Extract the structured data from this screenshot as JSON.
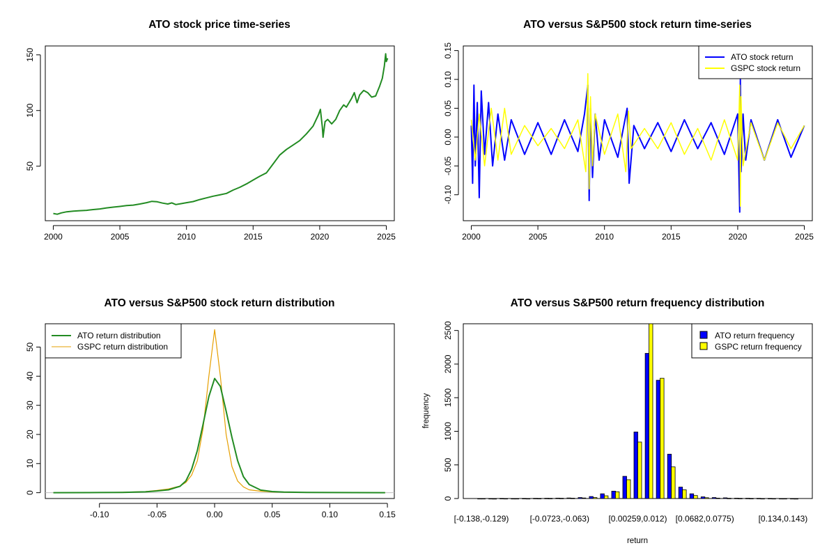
{
  "colors": {
    "ato_price": "#228B22",
    "ato_return": "#0000FF",
    "gspc_return": "#FFFF00",
    "ato_density": "#228B22",
    "gspc_density": "#E69F00",
    "baseline": "#BEBEBE"
  },
  "chart_data": [
    {
      "type": "line",
      "title": "ATO stock price time-series",
      "xlabel": "",
      "ylabel": "",
      "xlim": [
        1999.4,
        2025.6
      ],
      "ylim": [
        1.0,
        158.0
      ],
      "x_ticks": [
        2000,
        2005,
        2010,
        2015,
        2020,
        2025
      ],
      "x_tick_labels": [
        "2000",
        "2005",
        "2010",
        "2015",
        "2020",
        "2025"
      ],
      "y_ticks": [
        50,
        100,
        150
      ],
      "y_tick_labels": [
        "50",
        "100",
        "150"
      ],
      "grid": false,
      "series": [
        {
          "color": "#228B22",
          "x": [
            2000.0,
            2000.3,
            2000.6,
            2001.0,
            2001.5,
            2002.0,
            2002.5,
            2003.0,
            2003.5,
            2004.0,
            2004.5,
            2005.0,
            2005.5,
            2006.0,
            2006.5,
            2007.0,
            2007.4,
            2007.8,
            2008.2,
            2008.6,
            2008.9,
            2009.2,
            2009.6,
            2010.0,
            2010.5,
            2011.0,
            2011.5,
            2012.0,
            2012.5,
            2013.0,
            2013.5,
            2014.0,
            2014.5,
            2015.0,
            2015.5,
            2016.0,
            2016.5,
            2017.0,
            2017.5,
            2018.0,
            2018.5,
            2019.0,
            2019.5,
            2019.9,
            2020.05,
            2020.2,
            2020.25,
            2020.4,
            2020.6,
            2020.9,
            2021.2,
            2021.5,
            2021.8,
            2022.0,
            2022.2,
            2022.4,
            2022.6,
            2022.8,
            2023.0,
            2023.3,
            2023.6,
            2023.9,
            2024.2,
            2024.5,
            2024.7,
            2024.85,
            2024.95,
            2025.0,
            2025.1
          ],
          "y": [
            7.5,
            6.8,
            8.0,
            9.0,
            9.6,
            10.0,
            10.3,
            11.0,
            11.6,
            12.5,
            13.2,
            13.8,
            14.6,
            15.0,
            16.0,
            17.2,
            18.4,
            18.0,
            16.8,
            16.0,
            17.0,
            15.5,
            16.3,
            17.2,
            18.2,
            20.0,
            21.5,
            23.0,
            24.2,
            25.5,
            28.5,
            31.0,
            34.0,
            37.5,
            41.0,
            44.0,
            52.0,
            60.0,
            65.0,
            69.0,
            73.0,
            79.0,
            86.0,
            96.0,
            101.0,
            85.0,
            76.0,
            90.0,
            92.0,
            88.0,
            92.0,
            100.0,
            105.0,
            103.0,
            107.0,
            111.0,
            116.0,
            107.0,
            114.0,
            118.0,
            116.0,
            112.0,
            113.0,
            122.0,
            129.0,
            140.0,
            151.0,
            144.0,
            147.0
          ]
        }
      ]
    },
    {
      "type": "line",
      "title": "ATO versus S&P500 stock return time-series",
      "xlabel": "",
      "ylabel": "",
      "xlim": [
        1999.4,
        2025.6
      ],
      "ylim": [
        -0.145,
        0.158
      ],
      "x_ticks": [
        2000,
        2005,
        2010,
        2015,
        2020,
        2025
      ],
      "x_tick_labels": [
        "2000",
        "2005",
        "2010",
        "2015",
        "2020",
        "2025"
      ],
      "y_ticks": [
        -0.1,
        -0.05,
        0.0,
        0.05,
        0.1,
        0.15
      ],
      "y_tick_labels": [
        "-0.10",
        "-0.05",
        "0.00",
        "0.05",
        "0.10",
        "0.15"
      ],
      "grid": false,
      "legend_position": "top-right",
      "series": [
        {
          "name": "ATO stock return",
          "color": "#0000FF",
          "x": [
            2000.0,
            2000.1,
            2000.2,
            2000.3,
            2000.45,
            2000.6,
            2000.75,
            2001.0,
            2001.3,
            2001.6,
            2002.0,
            2002.5,
            2003.0,
            2004.0,
            2005.0,
            2006.0,
            2007.0,
            2008.0,
            2008.5,
            2008.75,
            2008.85,
            2008.95,
            2009.1,
            2009.3,
            2009.6,
            2010.0,
            2011.0,
            2011.7,
            2011.85,
            2012.2,
            2013.0,
            2014.0,
            2015.0,
            2016.0,
            2017.0,
            2018.0,
            2019.0,
            2020.0,
            2020.15,
            2020.2,
            2020.25,
            2020.4,
            2020.6,
            2021.0,
            2022.0,
            2023.0,
            2024.0,
            2025.0
          ],
          "y": [
            0.02,
            -0.08,
            0.09,
            -0.05,
            0.06,
            -0.105,
            0.08,
            -0.03,
            0.06,
            -0.05,
            0.04,
            -0.04,
            0.03,
            -0.03,
            0.025,
            -0.03,
            0.03,
            -0.025,
            0.04,
            0.09,
            -0.11,
            0.05,
            -0.07,
            0.04,
            -0.04,
            0.03,
            -0.035,
            0.05,
            -0.08,
            0.02,
            -0.02,
            0.025,
            -0.025,
            0.03,
            -0.02,
            0.025,
            -0.03,
            0.04,
            -0.13,
            0.1,
            -0.06,
            0.04,
            -0.04,
            0.03,
            -0.04,
            0.03,
            -0.035,
            0.02
          ]
        },
        {
          "name": "GSPC stock return",
          "color": "#FFFF00",
          "x": [
            2000.0,
            2000.3,
            2000.6,
            2001.0,
            2001.5,
            2002.0,
            2002.5,
            2003.0,
            2004.0,
            2005.0,
            2006.0,
            2007.0,
            2008.0,
            2008.6,
            2008.75,
            2008.85,
            2008.95,
            2009.1,
            2009.3,
            2010.0,
            2011.0,
            2011.6,
            2011.8,
            2012.0,
            2013.0,
            2014.0,
            2015.0,
            2016.0,
            2017.0,
            2018.0,
            2019.0,
            2020.0,
            2020.15,
            2020.2,
            2020.25,
            2020.4,
            2021.0,
            2022.0,
            2023.0,
            2024.0,
            2025.0
          ],
          "y": [
            0.03,
            -0.04,
            0.04,
            -0.05,
            0.05,
            -0.04,
            0.05,
            -0.03,
            0.02,
            -0.015,
            0.015,
            -0.02,
            0.03,
            -0.06,
            0.11,
            -0.09,
            0.07,
            -0.05,
            0.04,
            -0.03,
            0.04,
            -0.06,
            0.045,
            -0.02,
            0.015,
            -0.02,
            0.025,
            -0.03,
            0.015,
            -0.04,
            0.03,
            -0.04,
            0.09,
            -0.12,
            0.07,
            -0.05,
            0.025,
            -0.04,
            0.025,
            -0.02,
            0.02
          ]
        }
      ]
    },
    {
      "type": "line",
      "title": "ATO versus S&P500 stock return distribution",
      "xlabel": "",
      "ylabel": "",
      "xlim": [
        -0.147,
        0.156
      ],
      "ylim": [
        -2.0,
        58.0
      ],
      "x_ticks": [
        -0.1,
        -0.05,
        0.0,
        0.05,
        0.1,
        0.15
      ],
      "x_tick_labels": [
        "-0.10",
        "-0.05",
        "0.00",
        "0.05",
        "0.10",
        "0.15"
      ],
      "y_ticks": [
        0,
        10,
        20,
        30,
        40,
        50
      ],
      "y_tick_labels": [
        "0",
        "10",
        "20",
        "30",
        "40",
        "50"
      ],
      "grid": false,
      "legend_position": "top-left",
      "series": [
        {
          "name": "ATO return distribution",
          "color": "#228B22",
          "x": [
            -0.14,
            -0.1,
            -0.08,
            -0.06,
            -0.05,
            -0.04,
            -0.03,
            -0.025,
            -0.02,
            -0.015,
            -0.01,
            -0.005,
            0.0,
            0.005,
            0.01,
            0.015,
            0.02,
            0.025,
            0.03,
            0.04,
            0.05,
            0.06,
            0.08,
            0.1,
            0.148
          ],
          "y": [
            0.0,
            0.05,
            0.1,
            0.3,
            0.6,
            1.0,
            2.2,
            4.0,
            8.0,
            14.5,
            23.5,
            33.0,
            39.2,
            36.5,
            28.0,
            19.0,
            11.0,
            5.5,
            2.8,
            0.9,
            0.4,
            0.2,
            0.1,
            0.05,
            0.0
          ]
        },
        {
          "name": "GSPC return distribution",
          "color": "#E69F00",
          "x": [
            -0.14,
            -0.1,
            -0.08,
            -0.06,
            -0.05,
            -0.04,
            -0.03,
            -0.025,
            -0.02,
            -0.015,
            -0.01,
            -0.005,
            0.0,
            0.005,
            0.01,
            0.015,
            0.02,
            0.025,
            0.03,
            0.04,
            0.05,
            0.06,
            0.08,
            0.1,
            0.148
          ],
          "y": [
            0.0,
            0.05,
            0.15,
            0.4,
            0.8,
            1.3,
            2.3,
            3.5,
            6.0,
            11.0,
            22.0,
            40.0,
            56.0,
            40.0,
            20.0,
            9.0,
            4.0,
            2.0,
            1.0,
            0.5,
            0.25,
            0.15,
            0.1,
            0.05,
            0.0
          ]
        }
      ]
    },
    {
      "type": "bar",
      "title": "ATO versus S&P500 return frequency distribution",
      "xlabel": "return",
      "ylabel": "frequency",
      "ylim": [
        0,
        2600
      ],
      "y_ticks": [
        0,
        500,
        1000,
        1500,
        2000,
        2500
      ],
      "y_tick_labels": [
        "0",
        "500",
        "1000",
        "1500",
        "2000",
        "2500"
      ],
      "shown_category_labels": [
        "[-0.138,-0.129)",
        "[-0.0723,-0.063)",
        "[0.00259,0.012)",
        "[0.0682,0.0775)",
        "[0.134,0.143)"
      ],
      "shown_category_indices": [
        0,
        7,
        14,
        20,
        27
      ],
      "grid": false,
      "legend_position": "top-right",
      "n_categories": 29,
      "series": [
        {
          "name": "ATO return frequency",
          "color": "#0000FF",
          "values": [
            1,
            1,
            2,
            1,
            2,
            3,
            4,
            6,
            8,
            14,
            30,
            70,
            110,
            330,
            990,
            2160,
            1760,
            660,
            170,
            70,
            25,
            15,
            10,
            5,
            4,
            3,
            2,
            1,
            1
          ]
        },
        {
          "name": "GSPC return frequency",
          "color": "#FFFF00",
          "values": [
            1,
            0,
            1,
            1,
            1,
            2,
            3,
            4,
            5,
            8,
            15,
            40,
            100,
            280,
            840,
            2650,
            1790,
            470,
            130,
            45,
            12,
            6,
            4,
            3,
            2,
            1,
            1,
            1,
            0
          ]
        }
      ]
    }
  ]
}
